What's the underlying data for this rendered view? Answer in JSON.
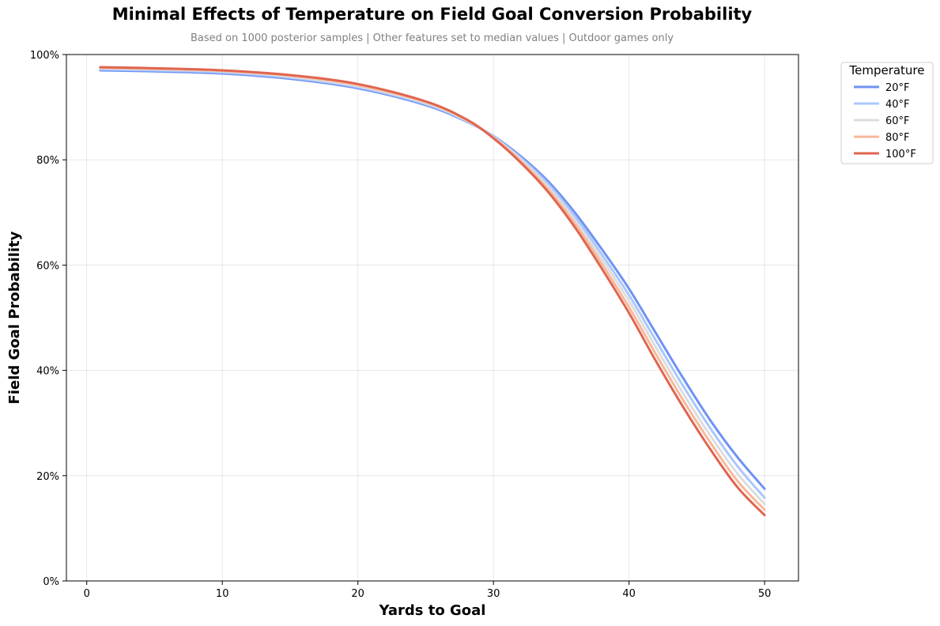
{
  "chart_data": {
    "type": "line",
    "title": "Minimal Effects of Temperature on Field Goal Conversion Probability",
    "subtitle": "Based on 1000 posterior samples | Other features set to median values | Outdoor games only",
    "xlabel": "Yards to Goal",
    "ylabel": "Field Goal Probability",
    "xlim": [
      -1.5,
      52.5
    ],
    "ylim": [
      0,
      100
    ],
    "xticks": [
      0,
      10,
      20,
      30,
      40,
      50
    ],
    "yticks": [
      0,
      20,
      40,
      60,
      80,
      100
    ],
    "ytick_labels": [
      "0%",
      "20%",
      "40%",
      "60%",
      "80%",
      "100%"
    ],
    "grid": true,
    "legend": {
      "title": "Temperature",
      "placement": "outside-top-right"
    },
    "x": [
      1,
      5,
      10,
      15,
      20,
      25,
      28,
      30,
      32,
      34,
      36,
      38,
      40,
      42,
      44,
      46,
      48,
      50
    ],
    "series": [
      {
        "name": "20°F",
        "color": "#6f92f3",
        "values": [
          97.0,
          96.8,
          96.4,
          95.4,
          93.6,
          90.4,
          87.3,
          84.5,
          80.7,
          76.0,
          70.0,
          63.0,
          55.5,
          47.0,
          38.5,
          30.5,
          23.5,
          17.5
        ]
      },
      {
        "name": "40°F",
        "color": "#aac7fd",
        "values": [
          97.2,
          97.0,
          96.6,
          95.6,
          93.8,
          90.6,
          87.4,
          84.4,
          80.4,
          75.5,
          69.3,
          62.0,
          54.3,
          45.6,
          37.0,
          29.0,
          21.8,
          15.8
        ]
      },
      {
        "name": "60°F",
        "color": "#dcdddd",
        "values": [
          97.4,
          97.2,
          96.8,
          95.8,
          94.0,
          90.8,
          87.5,
          84.3,
          80.1,
          75.0,
          68.6,
          61.1,
          53.2,
          44.3,
          35.6,
          27.6,
          20.4,
          14.6
        ]
      },
      {
        "name": "80°F",
        "color": "#f7b89c",
        "values": [
          97.5,
          97.3,
          96.9,
          96.0,
          94.2,
          91.0,
          87.6,
          84.2,
          79.8,
          74.5,
          67.9,
          60.2,
          52.0,
          43.0,
          34.3,
          26.3,
          19.0,
          13.5
        ]
      },
      {
        "name": "100°F",
        "color": "#e0654f",
        "values": [
          97.6,
          97.4,
          97.0,
          96.1,
          94.4,
          91.1,
          87.7,
          84.1,
          79.5,
          74.0,
          67.2,
          59.3,
          50.9,
          41.7,
          33.0,
          25.0,
          17.8,
          12.5
        ]
      }
    ]
  }
}
